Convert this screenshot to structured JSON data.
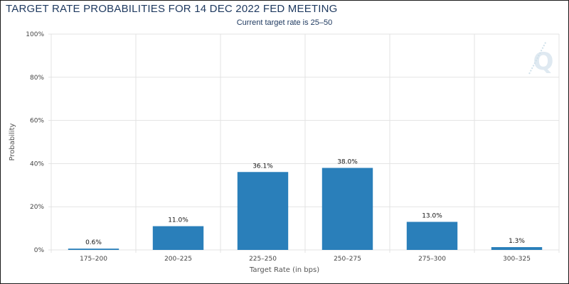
{
  "chart_data": {
    "type": "bar",
    "title": "TARGET RATE PROBABILITIES FOR 14 DEC 2022 FED MEETING",
    "subtitle": "Current target rate is 25–50",
    "xlabel": "Target Rate (in bps)",
    "ylabel": "Probability",
    "categories": [
      "175–200",
      "200–225",
      "225–250",
      "250–275",
      "275–300",
      "300–325"
    ],
    "values": [
      0.6,
      11.0,
      36.1,
      38.0,
      13.0,
      1.3
    ],
    "data_labels": [
      "0.6%",
      "11.0%",
      "36.1%",
      "38.0%",
      "13.0%",
      "1.3%"
    ],
    "ylim": [
      0,
      100
    ],
    "yticks": [
      0,
      20,
      40,
      60,
      80,
      100
    ],
    "ytick_labels": [
      "0%",
      "20%",
      "40%",
      "60%",
      "80%",
      "100%"
    ],
    "grid": true,
    "bar_color": "#2a7fba",
    "logo": "Q"
  }
}
